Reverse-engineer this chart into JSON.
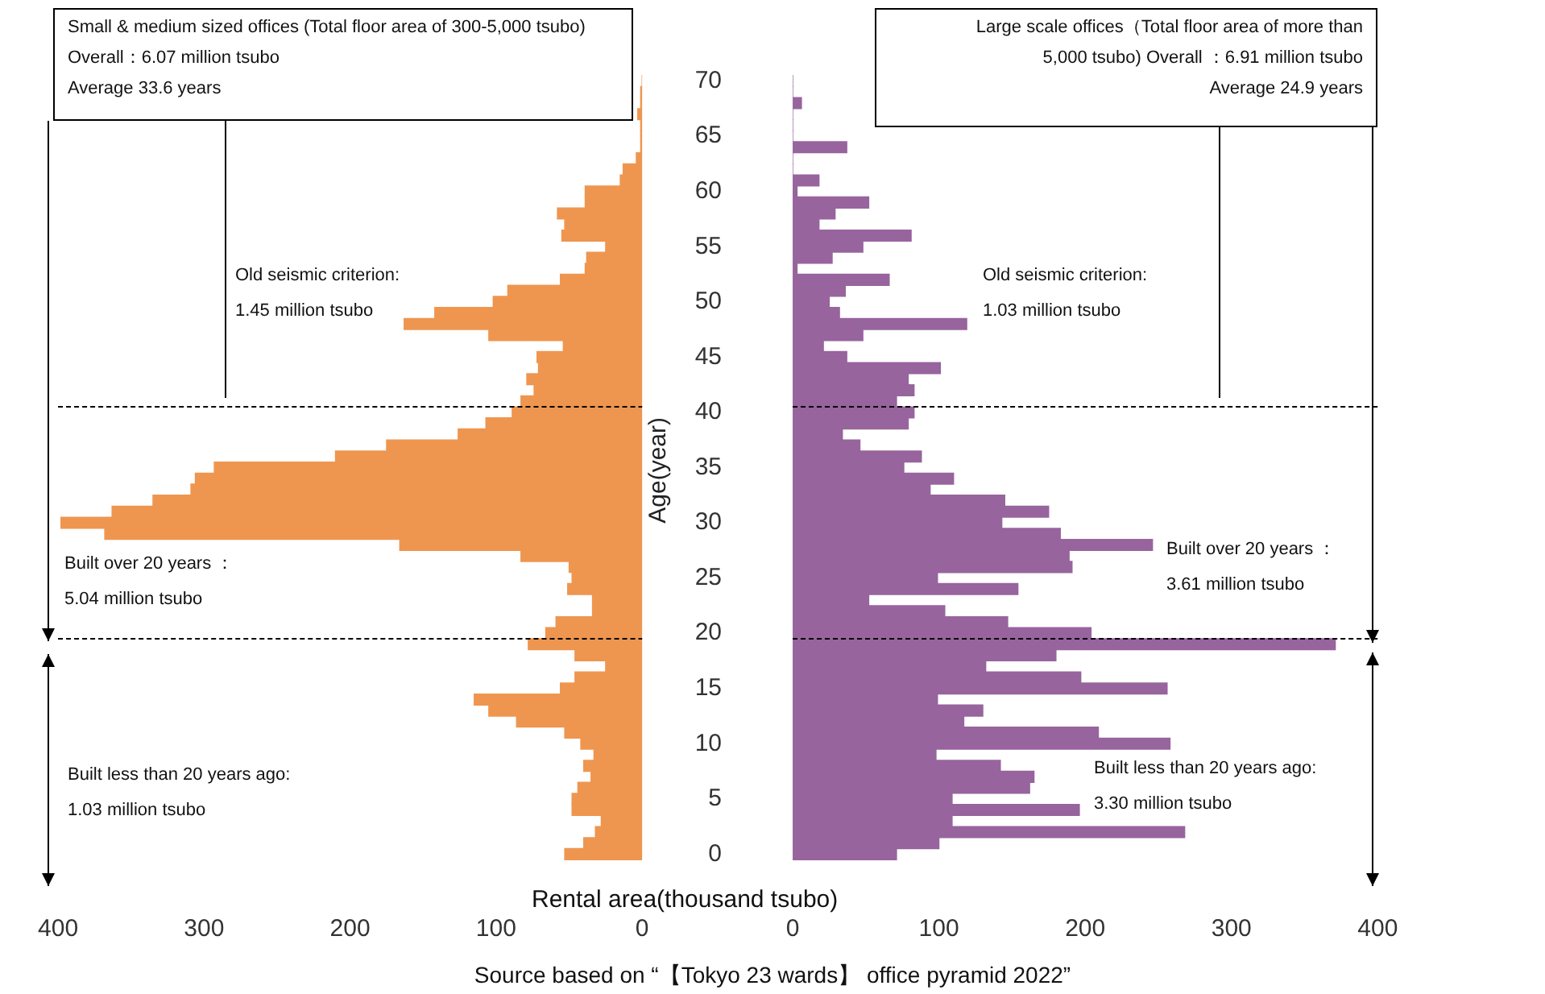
{
  "chart_data": [
    {
      "type": "bar",
      "orientation": "horizontal",
      "title": "Small & medium sized offices (Total floor area of 300-5,000 tsubo) Overall：6.07 million tsubo\nAverage 33.6 years",
      "x": [
        0,
        1,
        2,
        3,
        4,
        5,
        6,
        7,
        8,
        9,
        10,
        11,
        12,
        13,
        14,
        15,
        16,
        17,
        18,
        19,
        20,
        21,
        22,
        23,
        24,
        25,
        26,
        27,
        28,
        29,
        30,
        31,
        32,
        33,
        34,
        35,
        36,
        37,
        38,
        39,
        40,
        41,
        42,
        43,
        44,
        45,
        46,
        47,
        48,
        49,
        50,
        51,
        52,
        53,
        54,
        55,
        56,
        57,
        58,
        59,
        60,
        61,
        62,
        63,
        64,
        65,
        66,
        67,
        68,
        69,
        70
      ],
      "values": [
        53,
        40,
        32,
        28,
        48,
        48,
        44,
        35,
        40,
        33,
        42,
        53,
        86,
        105,
        115,
        56,
        46,
        25,
        46,
        78,
        66,
        59,
        34,
        34,
        51,
        48,
        50,
        83,
        166,
        368,
        398,
        363,
        335,
        309,
        306,
        293,
        210,
        175,
        126,
        107,
        89,
        83,
        74,
        79,
        71,
        72,
        54,
        105,
        163,
        142,
        102,
        92,
        56,
        39,
        38,
        25,
        55,
        53,
        58,
        39,
        39,
        15,
        13,
        4,
        1,
        1,
        1,
        3,
        1,
        1,
        0
      ],
      "color": "#ee9650",
      "xlim": [
        400,
        0
      ],
      "xticks": [
        400,
        300,
        200,
        100,
        0
      ],
      "ylim": [
        -0.5,
        70
      ],
      "yticks": [
        0,
        5,
        10,
        15,
        20,
        25,
        30,
        35,
        40,
        45,
        50,
        55,
        60,
        65,
        70
      ],
      "tick_labels": "x",
      "ref_lines": [
        {
          "axis": "y",
          "value": 40.5,
          "line_style": "dashed",
          "color": "#000000"
        },
        {
          "axis": "y",
          "value": 19.5,
          "line_style": "dashed",
          "color": "#000000"
        }
      ],
      "annotations": [
        "Old seismic criterion:\n1.45 million tsubo",
        "Built over 20 years ：\n5.04 million tsubo",
        "Built less than 20 years ago:\n1.03 million tsubo",
        "Source based on “【Tokyo 23 wards】 office pyramid 2022”"
      ]
    },
    {
      "type": "bar",
      "orientation": "horizontal",
      "title": "Large scale offices（Total floor area of more than\n5,000 tsubo) Overall ：6.91 million tsubo\nAverage 24.9 years",
      "xlabel": "Rental area(thousand tsubo)",
      "ylabel": "Age(year)",
      "x": [
        0,
        1,
        2,
        3,
        4,
        5,
        6,
        7,
        8,
        9,
        10,
        11,
        12,
        13,
        14,
        15,
        16,
        17,
        18,
        19,
        20,
        21,
        22,
        23,
        24,
        25,
        26,
        27,
        28,
        29,
        30,
        31,
        32,
        33,
        34,
        35,
        36,
        37,
        38,
        39,
        40,
        41,
        42,
        43,
        44,
        45,
        46,
        47,
        48,
        49,
        50,
        51,
        52,
        53,
        54,
        55,
        56,
        57,
        58,
        59,
        60,
        61,
        62,
        63,
        64,
        65,
        66,
        67,
        68,
        69,
        70
      ],
      "values": [
        71,
        100,
        268,
        109,
        196,
        109,
        162,
        165,
        142,
        98,
        258,
        209,
        117,
        130,
        99,
        256,
        197,
        132,
        180,
        371,
        204,
        147,
        104,
        52,
        154,
        99,
        191,
        189,
        246,
        183,
        143,
        175,
        145,
        94,
        110,
        76,
        88,
        46,
        34,
        79,
        83,
        71,
        83,
        79,
        101,
        37,
        21,
        48,
        119,
        32,
        25,
        36,
        66,
        3,
        27,
        48,
        81,
        18,
        29,
        52,
        3,
        18,
        0,
        0,
        37,
        0,
        0,
        0,
        6,
        0,
        0
      ],
      "color": "#97649e",
      "xlim": [
        0,
        400
      ],
      "xticks": [
        0,
        100,
        200,
        300,
        400
      ],
      "ylim": [
        -0.5,
        70
      ],
      "yticks": [
        0,
        5,
        10,
        15,
        20,
        25,
        30,
        35,
        40,
        45,
        50,
        55,
        60,
        65,
        70
      ],
      "ref_lines": [
        {
          "axis": "y",
          "value": 40.5,
          "line_style": "dashed",
          "color": "#000000"
        },
        {
          "axis": "y",
          "value": 19.5,
          "line_style": "dashed",
          "color": "#000000"
        }
      ],
      "annotations": [
        "Old seismic criterion:\n1.03 million tsubo",
        "Built over 20 years ：\n3.61 million tsubo",
        "Built less than 20 years ago:\n3.30 million tsubo"
      ]
    }
  ]
}
